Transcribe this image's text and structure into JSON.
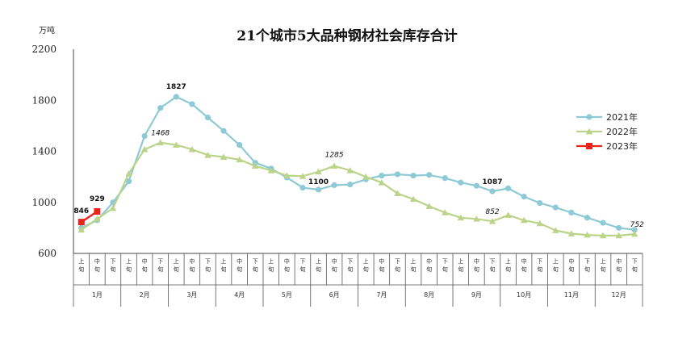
{
  "chart_data": {
    "type": "line",
    "title": "21个城市5大品种钢材社会库存合计",
    "unit_label": "万吨",
    "ylim": [
      600,
      2200
    ],
    "yticks": [
      "600",
      "1000",
      "1400",
      "1800",
      "2200"
    ],
    "grid": false,
    "legend_position": "right",
    "x_sub_labels": [
      "上旬",
      "中旬",
      "下旬"
    ],
    "months": [
      "1月",
      "2月",
      "3月",
      "4月",
      "5月",
      "6月",
      "7月",
      "8月",
      "9月",
      "10月",
      "11月",
      "12月"
    ],
    "series": [
      {
        "name": "2021年",
        "color": "#8ec9d6",
        "marker": "circle",
        "values": [
          800,
          860,
          1000,
          1165,
          1520,
          1740,
          1827,
          1770,
          1665,
          1560,
          1450,
          1310,
          1265,
          1195,
          1115,
          1100,
          1135,
          1140,
          1180,
          1210,
          1220,
          1210,
          1215,
          1190,
          1155,
          1130,
          1087,
          1110,
          1045,
          995,
          960,
          920,
          880,
          840,
          800,
          785
        ]
      },
      {
        "name": "2022年",
        "color": "#bcd38a",
        "marker": "triangle",
        "values": [
          785,
          870,
          955,
          1225,
          1415,
          1468,
          1450,
          1415,
          1370,
          1355,
          1335,
          1285,
          1250,
          1210,
          1205,
          1240,
          1285,
          1250,
          1200,
          1155,
          1070,
          1025,
          970,
          920,
          880,
          870,
          852,
          900,
          860,
          835,
          780,
          755,
          745,
          740,
          740,
          752
        ]
      },
      {
        "name": "2023年",
        "color": "#e8241b",
        "marker": "square",
        "values": [
          846,
          929
        ]
      }
    ],
    "annotations": [
      {
        "label": "1827",
        "series": 0,
        "index": 6,
        "style": "bold"
      },
      {
        "label": "1468",
        "series": 1,
        "index": 5,
        "style": "italic"
      },
      {
        "label": "1285",
        "series": 1,
        "index": 16,
        "style": "italic"
      },
      {
        "label": "1100",
        "series": 0,
        "index": 15,
        "style": "bold"
      },
      {
        "label": "1087",
        "series": 0,
        "index": 26,
        "style": "bold"
      },
      {
        "label": "852",
        "series": 1,
        "index": 26,
        "style": "italic"
      },
      {
        "label": "752",
        "series": 1,
        "index": 35,
        "style": "italic"
      },
      {
        "label": "846",
        "series": 2,
        "index": 0,
        "style": "bold"
      },
      {
        "label": "929",
        "series": 2,
        "index": 1,
        "style": "bold"
      }
    ]
  }
}
